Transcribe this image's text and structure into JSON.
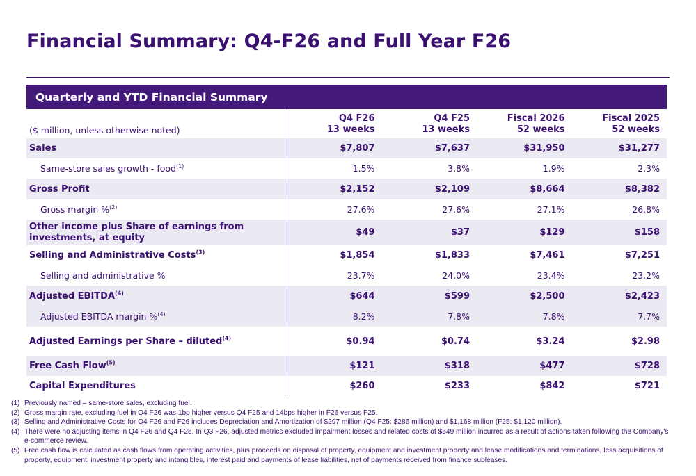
{
  "title": "Financial Summary: Q4-F26 and Full Year F26",
  "panel_title": "Quarterly and YTD Financial Summary",
  "header": {
    "units": "($ million, unless otherwise noted)",
    "columns": [
      {
        "line1": "Q4 F26",
        "line2": "13 weeks"
      },
      {
        "line1": "Q4 F25",
        "line2": "13 weeks"
      },
      {
        "line1": "Fiscal 2026",
        "line2": "52 weeks"
      },
      {
        "line1": "Fiscal 2025",
        "line2": "52 weeks"
      }
    ]
  },
  "rows": [
    {
      "label": "Sales",
      "sup": "",
      "values": [
        "$7,807",
        "$7,637",
        "$31,950",
        "$31,277"
      ]
    },
    {
      "label": "Same-store sales growth - food",
      "sup": "(1)",
      "values": [
        "1.5%",
        "3.8%",
        "1.9%",
        "2.3%"
      ]
    },
    {
      "label": "Gross Profit",
      "sup": "",
      "values": [
        "$2,152",
        "$2,109",
        "$8,664",
        "$8,382"
      ]
    },
    {
      "label": "Gross margin %",
      "sup": "(2)",
      "values": [
        "27.6%",
        "27.6%",
        "27.1%",
        "26.8%"
      ]
    },
    {
      "label": "Other income plus Share of earnings from investments, at equity",
      "sup": "",
      "values": [
        "$49",
        "$37",
        "$129",
        "$158"
      ]
    },
    {
      "label": "Selling and Administrative Costs",
      "sup": "(3)",
      "values": [
        "$1,854",
        "$1,833",
        "$7,461",
        "$7,251"
      ]
    },
    {
      "label": "Selling and administrative %",
      "sup": "",
      "values": [
        "23.7%",
        "24.0%",
        "23.4%",
        "23.2%"
      ]
    },
    {
      "label": "Adjusted EBITDA",
      "sup": "(4)",
      "values": [
        "$644",
        "$599",
        "$2,500",
        "$2,423"
      ]
    },
    {
      "label": "Adjusted EBITDA margin %",
      "sup": "(4)",
      "values": [
        "8.2%",
        "7.8%",
        "7.8%",
        "7.7%"
      ]
    },
    {
      "label": "Adjusted Earnings per Share – diluted",
      "sup": "(4)",
      "values": [
        "$0.94",
        "$0.74",
        "$3.24",
        "$2.98"
      ]
    },
    {
      "label": "Free Cash Flow",
      "sup": "(5)",
      "values": [
        "$121",
        "$318",
        "$477",
        "$728"
      ]
    },
    {
      "label": "Capital Expenditures",
      "sup": "",
      "values": [
        "$260",
        "$233",
        "$842",
        "$721"
      ]
    }
  ],
  "footnotes": [
    {
      "num": "(1)",
      "text": "Previously named – same-store sales, excluding fuel."
    },
    {
      "num": "(2)",
      "text": "Gross margin rate, excluding fuel in Q4 F26 was 1bp higher versus Q4 F25 and 14bps higher in F26 versus F25."
    },
    {
      "num": "(3)",
      "text": "Selling and Administrative Costs for Q4 F26  and F26 includes Depreciation and Amortization of $297 million (Q4 F25: $286 million) and $1,168 million (F25: $1,120 million)."
    },
    {
      "num": "(4)",
      "text": "There were no adjusting items in Q4 F26 and Q4 F25. In Q3 F26, adjusted metrics excluded impairment losses and related costs of $549 million incurred as a result of actions taken following the Company's e-commerce review."
    },
    {
      "num": "(5)",
      "text": "Free cash flow is calculated as cash flows from operating activities, plus proceeds on disposal of property, equipment and investment property and lease modifications and terminations, less acquisitions of property, equipment, investment property and intangibles, interest paid and payments of lease liabilities, net of payments received from finance subleases."
    }
  ]
}
